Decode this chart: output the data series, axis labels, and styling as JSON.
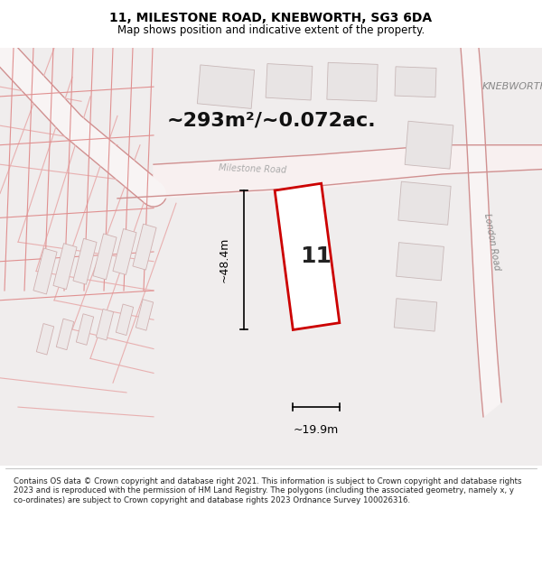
{
  "title": "11, MILESTONE ROAD, KNEBWORTH, SG3 6DA",
  "subtitle": "Map shows position and indicative extent of the property.",
  "footer": "Contains OS data © Crown copyright and database right 2021. This information is subject to Crown copyright and database rights 2023 and is reproduced with the permission of HM Land Registry. The polygons (including the associated geometry, namely x, y co-ordinates) are subject to Crown copyright and database rights 2023 Ordnance Survey 100026316.",
  "area_label": "~293m²/~0.072ac.",
  "number_label": "11",
  "dim_height": "~48.4m",
  "dim_width": "~19.9m",
  "road_label": "Milestone Road",
  "road_label2": "Milestone Road",
  "knebworth_label": "KNEBWORTH",
  "london_road_label": "London Road",
  "bg_color": "#f5f0f0",
  "map_bg": "#f0eded",
  "road_color": "#ffffff",
  "plot_outline_color": "#cc0000",
  "building_fill": "#e8e0e0",
  "building_outline": "#d0a0a0",
  "dim_line_color": "#000000",
  "title_color": "#000000",
  "text_color": "#000000",
  "road_stripe_color": "#e8c8c8"
}
